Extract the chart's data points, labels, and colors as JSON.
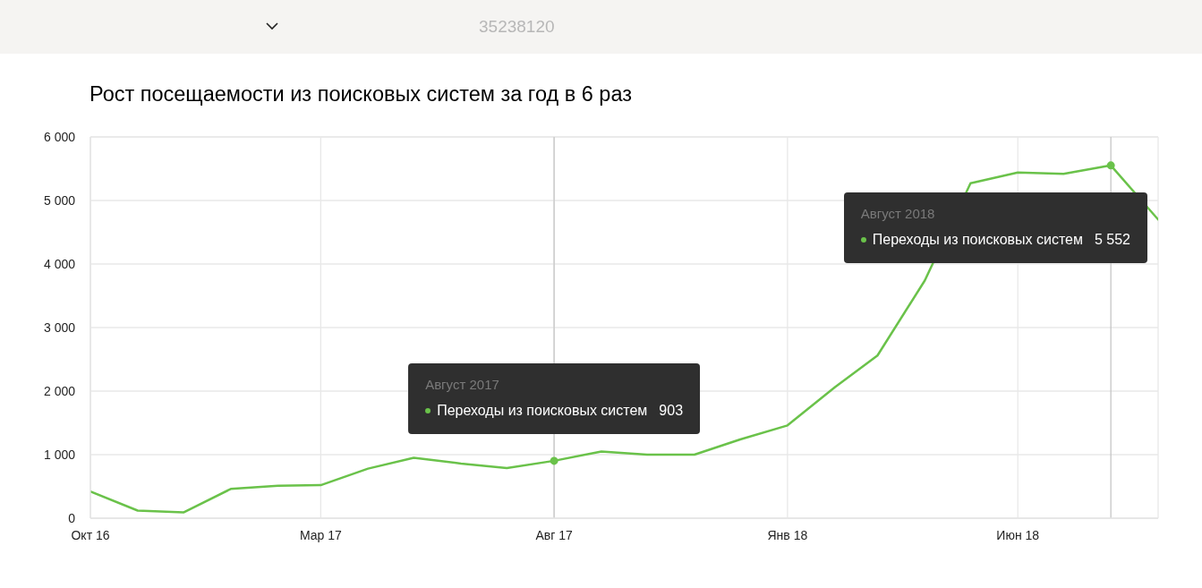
{
  "chart_data": {
    "type": "line",
    "title": "Рост посещаемости из поисковых систем за год в 6 раз",
    "x": [
      "2016-10",
      "2016-11",
      "2016-12",
      "2017-01",
      "2017-02",
      "2017-03",
      "2017-04",
      "2017-05",
      "2017-06",
      "2017-07",
      "2017-08",
      "2017-09",
      "2017-10",
      "2017-11",
      "2017-12",
      "2018-01",
      "2018-02",
      "2018-03",
      "2018-04",
      "2018-05",
      "2018-06",
      "2018-07",
      "2018-08",
      "2018-09"
    ],
    "series": [
      {
        "name": "Переходы из поисковых систем",
        "color": "#6ac24a",
        "values": [
          420,
          120,
          90,
          460,
          510,
          520,
          780,
          950,
          860,
          790,
          903,
          1050,
          1000,
          1000,
          1240,
          1460,
          2060,
          2560,
          3740,
          5270,
          5440,
          5420,
          5552,
          4700
        ]
      }
    ],
    "xlim": [
      "2016-10",
      "2018-09"
    ],
    "xticks": [
      {
        "value": "2016-10",
        "label": "Окт 16"
      },
      {
        "value": "2017-03",
        "label": "Мар 17"
      },
      {
        "value": "2017-08",
        "label": "Авг 17"
      },
      {
        "value": "2018-01",
        "label": "Янв 18"
      },
      {
        "value": "2018-06",
        "label": "Июн 18"
      }
    ],
    "ylim": [
      0,
      6000
    ],
    "yticks": [
      0,
      {
        "value": 1000,
        "label": "1 000"
      },
      {
        "value": 2000,
        "label": "2 000"
      },
      {
        "value": 3000,
        "label": "3 000"
      },
      {
        "value": 4000,
        "label": "4 000"
      },
      {
        "value": 5000,
        "label": "5 000"
      },
      {
        "value": 6000,
        "label": "6 000"
      }
    ],
    "grid": true,
    "ref_lines": [
      {
        "axis": "x",
        "value": "2017-08",
        "color": "#c6c6c6"
      },
      {
        "axis": "x",
        "value": "2018-08",
        "color": "#c6c6c6"
      }
    ],
    "annotations": [
      "35238120",
      "Август 2017",
      "903",
      "Август 2018",
      "5 552"
    ]
  }
}
